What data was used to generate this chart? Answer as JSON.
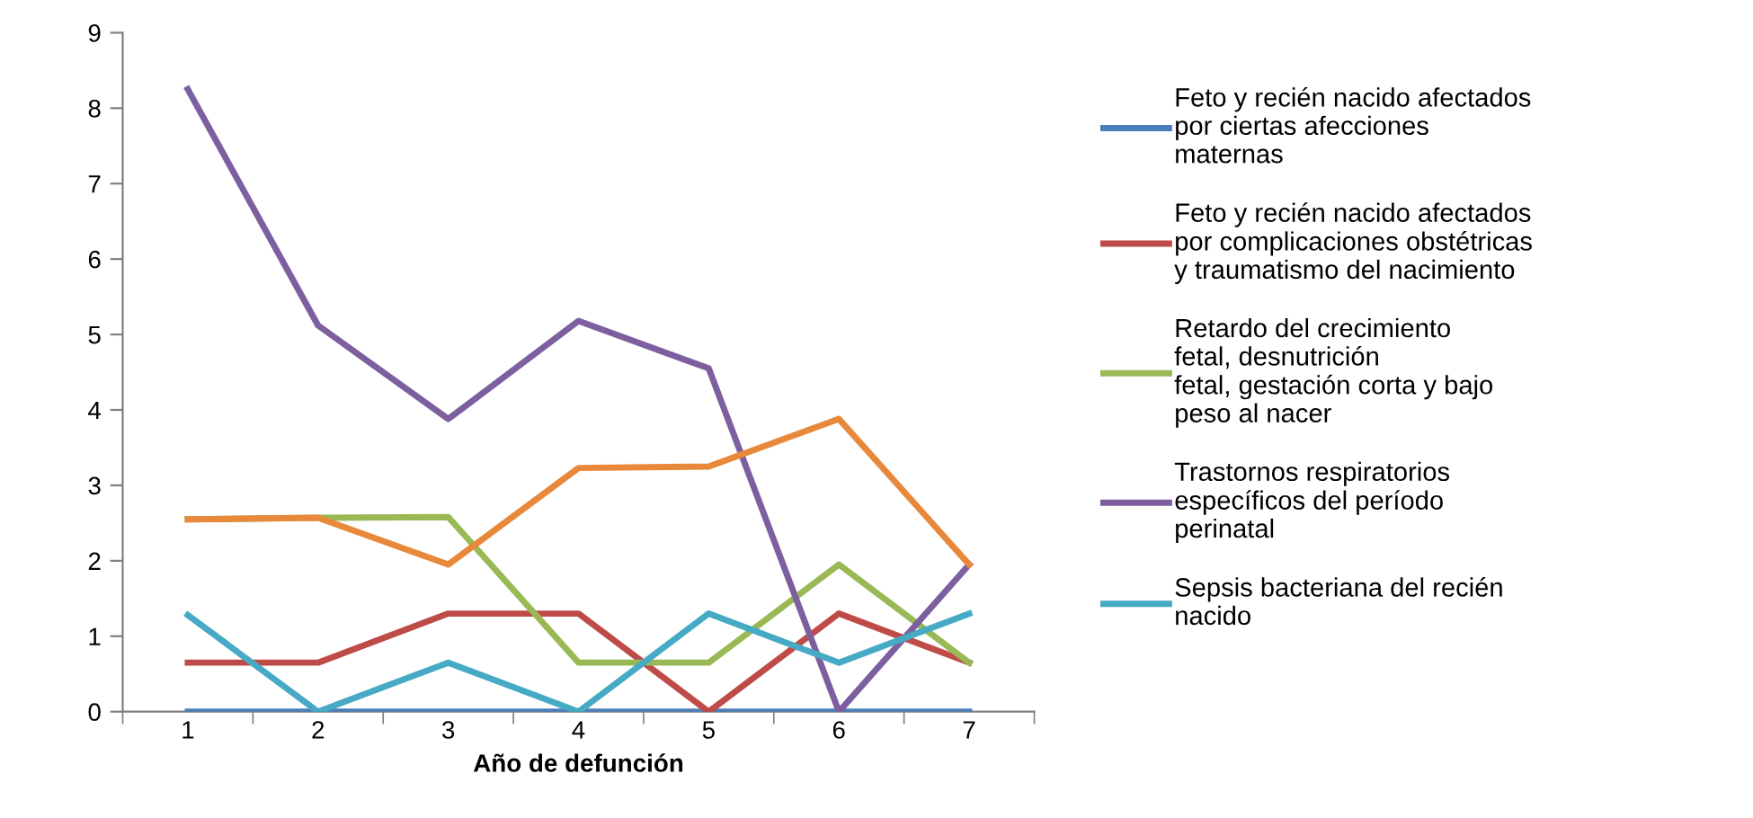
{
  "chart_data": {
    "type": "line",
    "xlabel": "Año de defunción",
    "categories": [
      "1",
      "2",
      "3",
      "4",
      "5",
      "6",
      "7"
    ],
    "ylim": [
      0,
      9
    ],
    "yticks": [
      0,
      1,
      2,
      3,
      4,
      5,
      6,
      7,
      8,
      9
    ],
    "grid": false,
    "legend": "right",
    "marker": "none",
    "line_style": "solid",
    "series": [
      {
        "name": "Feto y recién nacido afectados\npor ciertas afecciones\nmaternas",
        "color": "#4a7ebb",
        "values": [
          0,
          0,
          0,
          0,
          0,
          0,
          0
        ]
      },
      {
        "name": "Feto y recién nacido afectados\npor complicaciones obstétricas\ny traumatismo del nacimiento",
        "color": "#be4b48",
        "values": [
          0.65,
          0.65,
          1.3,
          1.3,
          0,
          1.3,
          0.65
        ]
      },
      {
        "name": "Retardo del crecimiento\nfetal, desnutrición\nfetal, gestación corta y bajo\npeso al nacer",
        "color": "#98b954",
        "values": [
          2.55,
          2.57,
          2.58,
          0.65,
          0.65,
          1.95,
          0.65
        ]
      },
      {
        "name": "Trastornos respiratorios\nespecíficos del período\nperinatal",
        "color": "#7d5fa0",
        "values": [
          8.25,
          5.12,
          3.88,
          5.18,
          4.55,
          0,
          1.95
        ]
      },
      {
        "name": "Sepsis bacteriana del recién\nnacido",
        "color": "#46aac5",
        "values": [
          1.28,
          0,
          0.65,
          0,
          1.3,
          0.65,
          1.3
        ]
      },
      {
        "color": "#e8883a",
        "values": [
          2.55,
          2.57,
          1.95,
          3.23,
          3.25,
          3.88,
          1.95
        ]
      }
    ]
  }
}
